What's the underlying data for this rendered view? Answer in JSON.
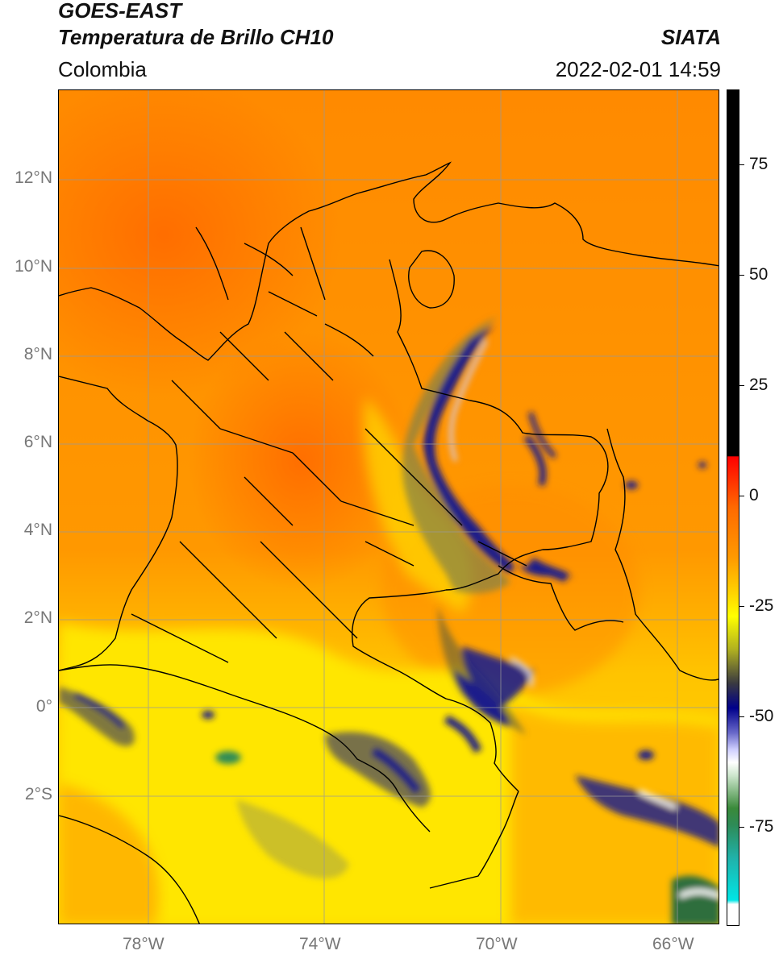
{
  "header": {
    "satellite": "GOES-EAST",
    "product": "Temperatura de Brillo CH10",
    "institution": "SIATA",
    "region": "Colombia",
    "datetime": "2022-02-01 14:59"
  },
  "map": {
    "lat_ticks": [
      "12°N",
      "10°N",
      "8°N",
      "6°N",
      "4°N",
      "2°N",
      "0°",
      "2°S"
    ],
    "lon_ticks": [
      "78°W",
      "74°W",
      "70°W",
      "66°W"
    ],
    "colors": {
      "background_orange": "#ff8c00",
      "warm_orange": "#ff6a00",
      "yellow": "#ffff00",
      "cloud_dark_blue": "#00008b",
      "cloud_white": "#ffffff",
      "cloud_green": "#2e8b57",
      "border": "#000000",
      "grid": "#999999"
    }
  },
  "colorbar": {
    "tick_labels": [
      "75",
      "50",
      "25",
      "0",
      "-25",
      "-50",
      "-75"
    ],
    "colors": [
      "#000000",
      "#ff0000",
      "#ff8c00",
      "#ffff00",
      "#808000",
      "#00008b",
      "#ffffff",
      "#2e8b57",
      "#00e5e5",
      "#ffffff"
    ]
  }
}
